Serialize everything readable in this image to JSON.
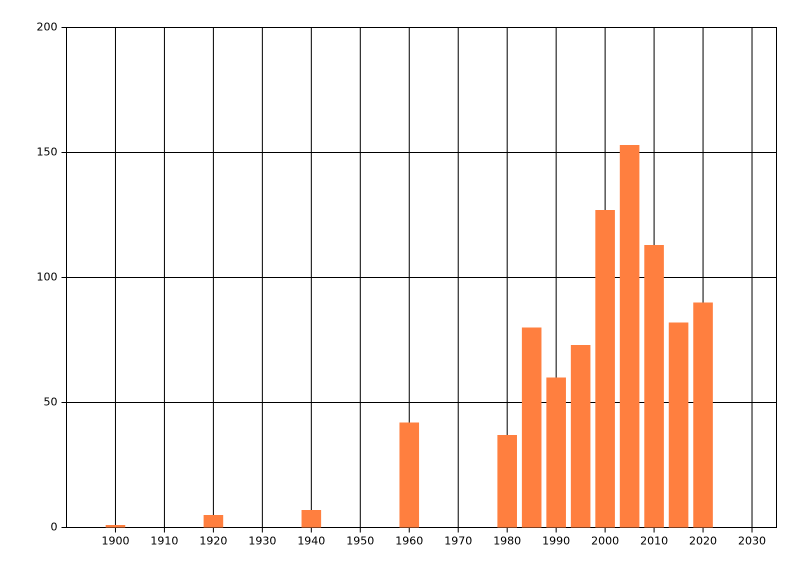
{
  "chart_data": {
    "type": "bar",
    "x": [
      1900,
      1920,
      1940,
      1960,
      1980,
      1985,
      1990,
      1995,
      2000,
      2005,
      2010,
      2015,
      2020
    ],
    "values": [
      1,
      5,
      7,
      42,
      37,
      80,
      60,
      73,
      127,
      153,
      113,
      82,
      90
    ],
    "color": "#ff7f3f",
    "xlim": [
      1890,
      2035
    ],
    "xticks": [
      1900,
      1910,
      1920,
      1930,
      1940,
      1950,
      1960,
      1970,
      1980,
      1990,
      2000,
      2010,
      2020,
      2030
    ],
    "ylim": [
      0,
      200
    ],
    "yticks": [
      0,
      50,
      100,
      150,
      200
    ],
    "grid": true
  }
}
